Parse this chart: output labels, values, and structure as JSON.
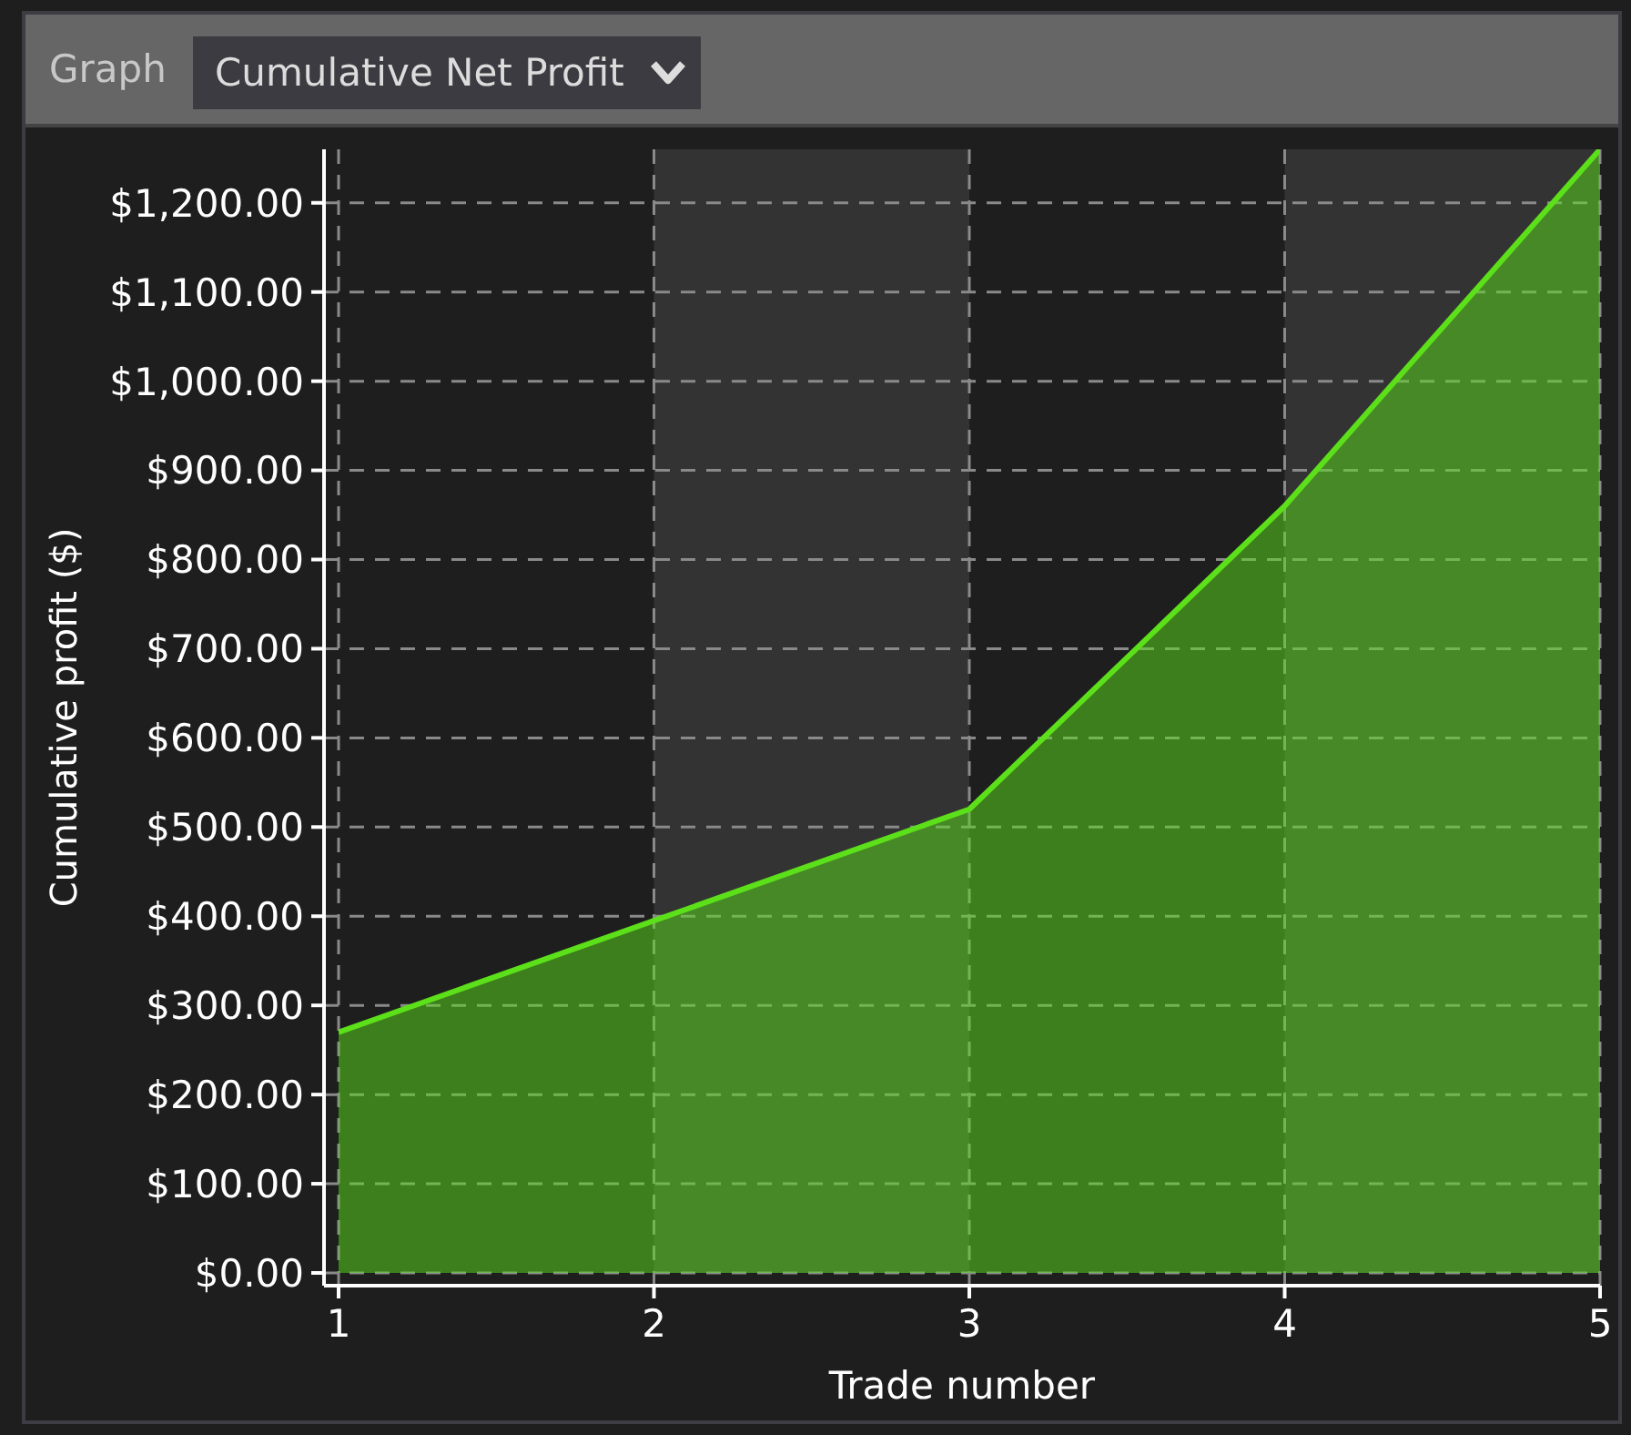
{
  "chart_data": {
    "type": "area",
    "title": "Cumulative Net Profit",
    "annotations": [
      "Graph"
    ],
    "xlabel": "Trade number",
    "ylabel": "Cumulative profit ($)",
    "x": [
      1,
      2,
      3,
      4,
      5
    ],
    "values": [
      270,
      395,
      520,
      860,
      1260
    ],
    "color": "#5ce01a",
    "xlim": [
      1,
      5
    ],
    "xticks": [
      1,
      2,
      3,
      4,
      5
    ],
    "ylim": [
      0,
      1260
    ],
    "yticks": [
      {
        "value": 0,
        "label": "$0.00"
      },
      {
        "value": 100,
        "label": "$100.00"
      },
      {
        "value": 200,
        "label": "$200.00"
      },
      {
        "value": 300,
        "label": "$300.00"
      },
      {
        "value": 400,
        "label": "$400.00"
      },
      {
        "value": 500,
        "label": "$500.00"
      },
      {
        "value": 600,
        "label": "$600.00"
      },
      {
        "value": 700,
        "label": "$700.00"
      },
      {
        "value": 800,
        "label": "$800.00"
      },
      {
        "value": 900,
        "label": "$900.00"
      },
      {
        "value": 1000,
        "label": "$1,000.00"
      },
      {
        "value": 1100,
        "label": "$1,100.00"
      },
      {
        "value": 1200,
        "label": "$1,200.00"
      }
    ],
    "grid": true,
    "bands": [
      {
        "axis": "x",
        "from": 2,
        "to": 3,
        "color": "#333333"
      },
      {
        "axis": "x",
        "from": 4,
        "to": 5,
        "color": "#333333"
      }
    ]
  }
}
